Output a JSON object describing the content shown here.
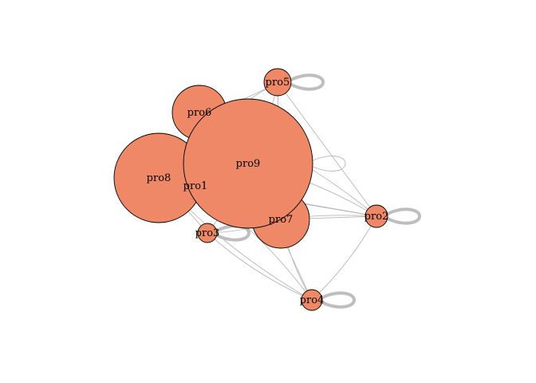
{
  "diagram": {
    "type": "network-graph",
    "colors": {
      "node_fill": "#EE8866",
      "node_stroke": "#000000",
      "edge": "#B8B8B8",
      "self_loop_thick": "#BEBEBE",
      "background": "#FFFFFF"
    },
    "nodes": [
      {
        "id": "pro1",
        "label": "pro1"
      },
      {
        "id": "pro2",
        "label": "pro2"
      },
      {
        "id": "pro3",
        "label": "pro3"
      },
      {
        "id": "pro4",
        "label": "pro4"
      },
      {
        "id": "pro5",
        "label": "pro5"
      },
      {
        "id": "pro6",
        "label": "pro6"
      },
      {
        "id": "pro7",
        "label": "pro7"
      },
      {
        "id": "pro8",
        "label": "pro8"
      },
      {
        "id": "pro9",
        "label": "pro9"
      }
    ],
    "edges": [
      [
        "pro9",
        "pro2"
      ],
      [
        "pro9",
        "pro4"
      ],
      [
        "pro9",
        "pro5"
      ],
      [
        "pro9",
        "pro7"
      ],
      [
        "pro9",
        "pro8"
      ],
      [
        "pro9",
        "pro6"
      ],
      [
        "pro9",
        "pro3"
      ],
      [
        "pro8",
        "pro2"
      ],
      [
        "pro8",
        "pro4"
      ],
      [
        "pro8",
        "pro5"
      ],
      [
        "pro8",
        "pro3"
      ],
      [
        "pro6",
        "pro5"
      ],
      [
        "pro6",
        "pro2"
      ],
      [
        "pro7",
        "pro2"
      ],
      [
        "pro7",
        "pro4"
      ],
      [
        "pro7",
        "pro3"
      ],
      [
        "pro7",
        "pro5"
      ],
      [
        "pro3",
        "pro4"
      ],
      [
        "pro3",
        "pro2"
      ],
      [
        "pro5",
        "pro2"
      ],
      [
        "pro4",
        "pro2"
      ],
      [
        "pro1",
        "pro4"
      ],
      [
        "pro1",
        "pro2"
      ]
    ],
    "self_loops": [
      {
        "node": "pro5",
        "style": "thick"
      },
      {
        "node": "pro2",
        "style": "thick"
      },
      {
        "node": "pro3",
        "style": "thick"
      },
      {
        "node": "pro4",
        "style": "thick"
      },
      {
        "node": "pro9",
        "style": "thin"
      }
    ]
  }
}
